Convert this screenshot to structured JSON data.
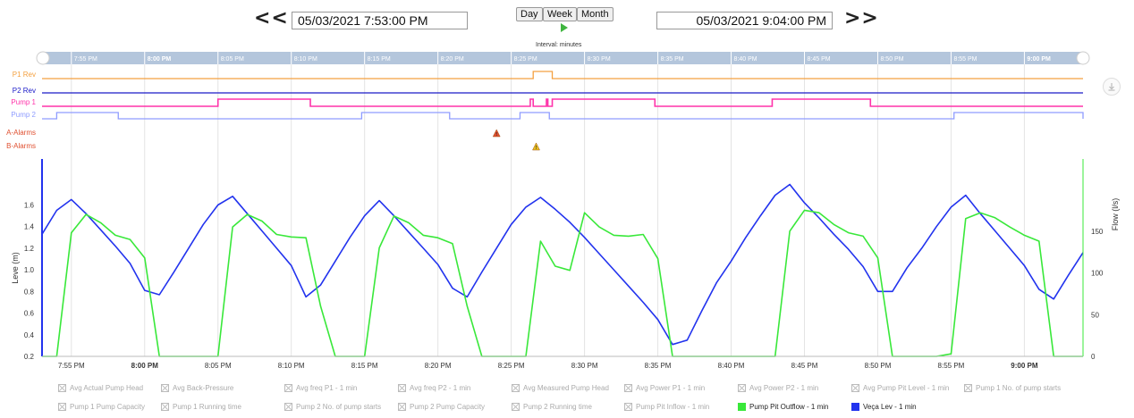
{
  "nav": {
    "prev_label": "<<",
    "next_label": ">>",
    "start": "05/03/2021 7:53:00 PM",
    "end": "05/03/2021 9:04:00 PM",
    "range_buttons": [
      "Day",
      "Week",
      "Month"
    ],
    "interval_label": "Interval: minutes"
  },
  "chart_data": {
    "type": "line",
    "x_range": [
      "19:53",
      "21:04"
    ],
    "x_ticks": [
      "7:55 PM",
      "8:00 PM",
      "8:05 PM",
      "8:10 PM",
      "8:15 PM",
      "8:20 PM",
      "8:25 PM",
      "8:30 PM",
      "8:35 PM",
      "8:40 PM",
      "8:45 PM",
      "8:50 PM",
      "8:55 PM",
      "9:00 PM"
    ],
    "x_ticks_bold": [
      "8:00 PM",
      "9:00 PM"
    ],
    "ylabel_left": "Leve (m)",
    "ylabel_right": "Flow (l/s)",
    "y_left_ticks": [
      "0.2",
      "0.4",
      "0.6",
      "0.8",
      "1.0",
      "1.2",
      "1.4",
      "1.6"
    ],
    "y_left_range": [
      0.2,
      1.86
    ],
    "y_right_ticks": [
      "0",
      "50",
      "100",
      "150"
    ],
    "y_right_range": [
      0,
      215
    ],
    "grid": true,
    "status_tracks": [
      {
        "name": "P1 Rev",
        "color": "#f4a040",
        "on": [
          [
            "20:26.5",
            "20:27.8"
          ]
        ]
      },
      {
        "name": "P2 Rev",
        "color": "#1a1ac8",
        "on": []
      },
      {
        "name": "Pump 1",
        "color": "#ff33aa",
        "on": [
          [
            "20:05",
            "20:11.3"
          ],
          [
            "20:26.3",
            "20:26.5"
          ],
          [
            "20:27.4",
            "20:27.5"
          ],
          [
            "20:27.8",
            "20:34.8"
          ],
          [
            "20:42.8",
            "20:49.5"
          ]
        ]
      },
      {
        "name": "Pump 2",
        "color": "#8f9cff",
        "on": [
          [
            "19:54",
            "19:58.2"
          ],
          [
            "20:14.8",
            "20:20.8"
          ],
          [
            "20:25.6",
            "20:27.6"
          ],
          [
            "20:55.2",
            "21:04"
          ]
        ]
      }
    ],
    "alarm_tracks": [
      {
        "name": "A-Alarms",
        "color": "#e05030",
        "events": [
          "20:24"
        ]
      },
      {
        "name": "B-Alarms",
        "color": "#e8c020",
        "events": [
          "20:26.7"
        ]
      }
    ],
    "series": [
      {
        "name": "Veça Lev - 1 min",
        "color": "#2233ee",
        "axis": "left",
        "x": [
          "19:53",
          "19:54",
          "19:55",
          "19:56",
          "19:57",
          "19:58",
          "19:59",
          "20:00",
          "20:01",
          "20:02",
          "20:03",
          "20:04",
          "20:05",
          "20:06",
          "20:07",
          "20:08",
          "20:09",
          "20:10",
          "20:11",
          "20:12",
          "20:13",
          "20:14",
          "20:15",
          "20:16",
          "20:17",
          "20:18",
          "20:19",
          "20:20",
          "20:21",
          "20:22",
          "20:23",
          "20:24",
          "20:25",
          "20:26",
          "20:27",
          "20:28",
          "20:29",
          "20:30",
          "20:31",
          "20:32",
          "20:33",
          "20:34",
          "20:35",
          "20:36",
          "20:37",
          "20:38",
          "20:39",
          "20:40",
          "20:41",
          "20:42",
          "20:43",
          "20:44",
          "20:45",
          "20:46",
          "20:47",
          "20:48",
          "20:49",
          "20:50",
          "20:51",
          "20:52",
          "20:53",
          "20:54",
          "20:55",
          "20:56",
          "20:57",
          "20:58",
          "20:59",
          "21:00",
          "21:01",
          "21:02",
          "21:03",
          "21:04"
        ],
        "y": [
          1.33,
          1.55,
          1.65,
          1.52,
          1.37,
          1.22,
          1.06,
          0.81,
          0.77,
          0.98,
          1.2,
          1.42,
          1.6,
          1.68,
          1.52,
          1.36,
          1.2,
          1.04,
          0.75,
          0.86,
          1.08,
          1.3,
          1.5,
          1.64,
          1.5,
          1.35,
          1.2,
          1.05,
          0.83,
          0.75,
          0.98,
          1.2,
          1.42,
          1.58,
          1.67,
          1.56,
          1.44,
          1.3,
          1.15,
          1.0,
          0.85,
          0.7,
          0.54,
          0.31,
          0.35,
          0.62,
          0.88,
          1.08,
          1.3,
          1.5,
          1.69,
          1.79,
          1.62,
          1.48,
          1.33,
          1.19,
          1.03,
          0.8,
          0.8,
          1.02,
          1.2,
          1.4,
          1.58,
          1.69,
          1.52,
          1.36,
          1.2,
          1.04,
          0.82,
          0.73,
          0.95,
          1.16
        ]
      },
      {
        "name": "Pump Pit Outflow - 1 min",
        "color": "#39e83a",
        "axis": "right",
        "x": [
          "19:53",
          "19:54",
          "19:55",
          "19:56",
          "19:57",
          "19:58",
          "19:59",
          "20:00",
          "20:01",
          "20:02",
          "20:03",
          "20:04",
          "20:05",
          "20:06",
          "20:07",
          "20:08",
          "20:09",
          "20:10",
          "20:11",
          "20:12",
          "20:13",
          "20:14",
          "20:15",
          "20:16",
          "20:17",
          "20:18",
          "20:19",
          "20:20",
          "20:21",
          "20:22",
          "20:23",
          "20:24",
          "20:25",
          "20:26",
          "20:27",
          "20:28",
          "20:29",
          "20:30",
          "20:31",
          "20:32",
          "20:33",
          "20:34",
          "20:35",
          "20:36",
          "20:37",
          "20:38",
          "20:39",
          "20:40",
          "20:41",
          "20:42",
          "20:43",
          "20:44",
          "20:45",
          "20:46",
          "20:47",
          "20:48",
          "20:49",
          "20:50",
          "20:51",
          "20:52",
          "20:53",
          "20:54",
          "20:55",
          "20:56",
          "20:57",
          "20:58",
          "20:59",
          "21:00",
          "21:01",
          "21:02",
          "21:03",
          "21:04"
        ],
        "y": [
          0,
          0,
          148,
          170,
          160,
          145,
          140,
          118,
          0,
          0,
          0,
          0,
          0,
          155,
          170,
          162,
          146,
          143,
          142,
          60,
          0,
          0,
          0,
          130,
          168,
          160,
          145,
          142,
          135,
          60,
          0,
          0,
          0,
          0,
          138,
          108,
          103,
          172,
          155,
          145,
          144,
          146,
          117,
          0,
          0,
          0,
          0,
          0,
          0,
          0,
          0,
          150,
          175,
          172,
          158,
          148,
          144,
          118,
          0,
          0,
          0,
          0,
          3,
          165,
          172,
          166,
          155,
          145,
          138,
          0,
          0,
          0
        ]
      }
    ],
    "legend": [
      {
        "label": "Avg Actual Pump Head",
        "visible": false
      },
      {
        "label": "Avg Back-Pressure",
        "visible": false
      },
      {
        "label": "Avg freq P1 - 1 min",
        "visible": false
      },
      {
        "label": "Avg freq P2 - 1 min",
        "visible": false
      },
      {
        "label": "Avg Measured Pump Head",
        "visible": false
      },
      {
        "label": "Avg Power P1 - 1 min",
        "visible": false
      },
      {
        "label": "Avg Power P2 - 1 min",
        "visible": false
      },
      {
        "label": "Avg Pump Pit Level - 1 min",
        "visible": false
      },
      {
        "label": "Pump 1 No. of pump starts",
        "visible": false
      },
      {
        "label": "Pump 1 Pump Capacity",
        "visible": false
      },
      {
        "label": "Pump 1 Running time",
        "visible": false
      },
      {
        "label": "Pump 2 No. of pump starts",
        "visible": false
      },
      {
        "label": "Pump 2 Pump Capacity",
        "visible": false
      },
      {
        "label": "Pump 2 Running time",
        "visible": false
      },
      {
        "label": "Pump Pit Inflow - 1 min",
        "visible": false
      },
      {
        "label": "Pump Pit Outflow - 1 min",
        "visible": true,
        "color": "#39e83a"
      },
      {
        "label": "Veça Lev - 1 min",
        "visible": true,
        "color": "#2233ee"
      }
    ]
  }
}
